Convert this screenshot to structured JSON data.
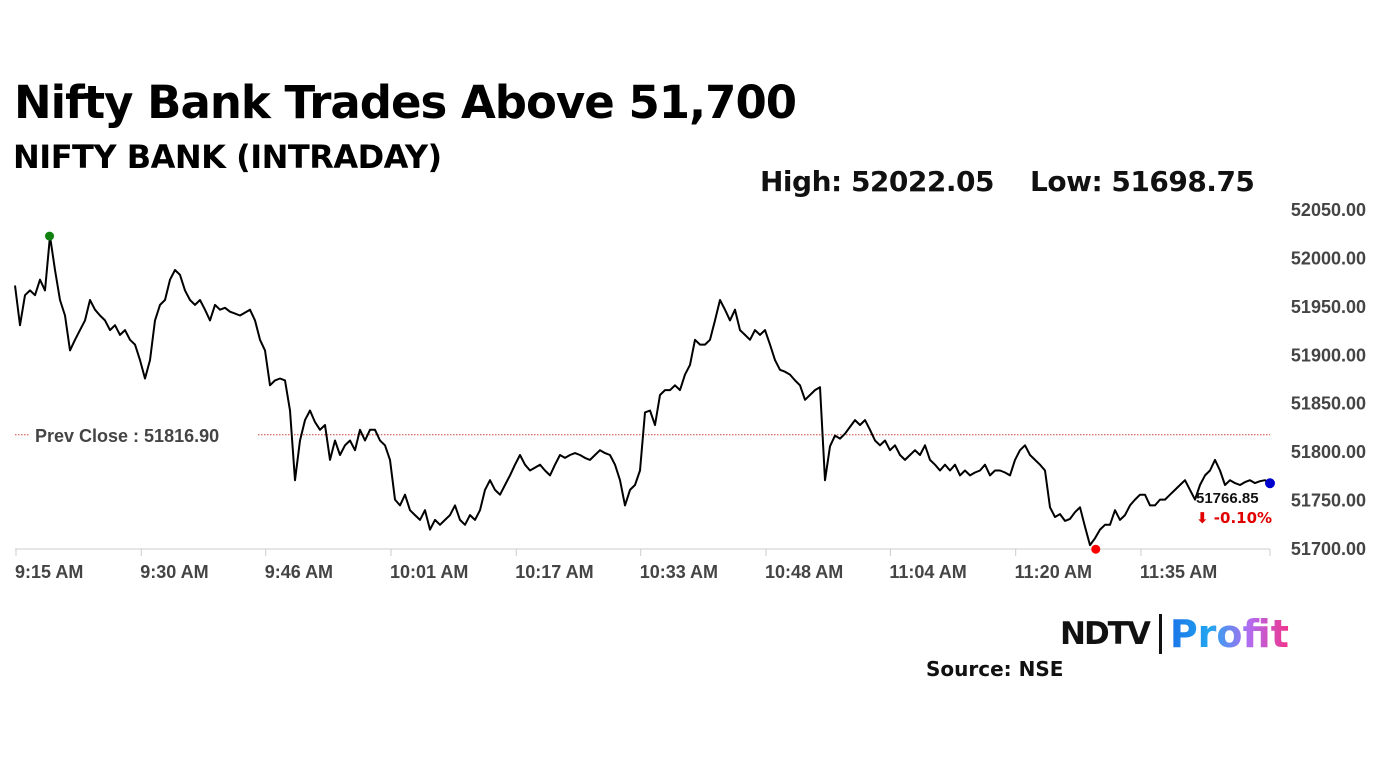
{
  "header": {
    "title": "Nifty Bank Trades Above 51,700",
    "subtitle": "NIFTY BANK (INTRADAY)",
    "high_label": "High: 52022.05",
    "low_label": "Low: 51698.75"
  },
  "footer": {
    "logo_ndtv": "NDTV",
    "logo_profit": "Profit",
    "source": "Source: NSE"
  },
  "colors": {
    "line": "#000000",
    "high_marker": "#108010",
    "low_marker": "#ff0000",
    "last_marker": "#0000cc",
    "prev_close_line": "#d04040",
    "negative": "#e00000",
    "axis_text": "#444444"
  },
  "chart_data": {
    "type": "line",
    "title": "NIFTY BANK (INTRADAY)",
    "xlabel": "",
    "ylabel": "",
    "x_range_minutes_since_open": [
      0,
      156.3
    ],
    "session_start": "9:15 AM",
    "ylim": [
      51700,
      52050
    ],
    "yticks": [
      "51700.00",
      "51750.00",
      "51800.00",
      "51850.00",
      "51900.00",
      "51950.00",
      "52000.00",
      "52050.00"
    ],
    "ytick_values": [
      51700,
      51750,
      51800,
      51850,
      51900,
      51950,
      52000,
      52050
    ],
    "xticks": [
      "9:15 AM",
      "9:30 AM",
      "9:46 AM",
      "10:01 AM",
      "10:17 AM",
      "10:33 AM",
      "10:48 AM",
      "11:04 AM",
      "11:20 AM",
      "11:35 AM"
    ],
    "xtick_minutes": [
      0,
      15.6,
      31.1,
      46.7,
      62.3,
      77.8,
      93.4,
      108.9,
      124.5,
      140.1
    ],
    "prev_close": 51816.9,
    "prev_close_label": "Prev Close : 51816.90",
    "high": 52022.05,
    "high_minute": 4.3,
    "low": 51698.75,
    "low_minute": 134.6,
    "last_value_label": "51766.85",
    "last_change_label": "⬇ -0.10%",
    "last_value": 51766.85,
    "grid": false,
    "values": [
      51971,
      51930,
      51961,
      51966,
      51961,
      51977,
      51966,
      52022,
      51987,
      51956,
      51940,
      51904,
      51915,
      51925,
      51935,
      51956,
      51946,
      51940,
      51935,
      51925,
      51930,
      51920,
      51925,
      51915,
      51910,
      51894,
      51875,
      51894,
      51935,
      51951,
      51956,
      51977,
      51987,
      51982,
      51966,
      51956,
      51951,
      51956,
      51946,
      51935,
      51951,
      51946,
      51948,
      51944,
      51942,
      51940,
      51943,
      51946,
      51935,
      51915,
      51904,
      51868,
      51873,
      51875,
      51873,
      51842,
      51770,
      51811,
      51832,
      51842,
      51830,
      51822,
      51827,
      51791,
      51811,
      51796,
      51806,
      51811,
      51801,
      51822,
      51811,
      51822,
      51822,
      51811,
      51806,
      51791,
      51750,
      51744,
      51755,
      51739,
      51734,
      51729,
      51739,
      51719,
      51729,
      51724,
      51729,
      51734,
      51744,
      51729,
      51724,
      51734,
      51729,
      51739,
      51760,
      51770,
      51760,
      51755,
      51765,
      51775,
      51786,
      51796,
      51786,
      51780,
      51783,
      51786,
      51780,
      51775,
      51786,
      51796,
      51793,
      51796,
      51798,
      51796,
      51793,
      51791,
      51796,
      51801,
      51798,
      51796,
      51786,
      51770,
      51744,
      51760,
      51765,
      51780,
      51840,
      51842,
      51827,
      51858,
      51863,
      51863,
      51868,
      51863,
      51879,
      51889,
      51915,
      51910,
      51910,
      51915,
      51935,
      51956,
      51946,
      51935,
      51946,
      51925,
      51920,
      51915,
      51925,
      51920,
      51925,
      51910,
      51894,
      51884,
      51882,
      51879,
      51873,
      51868,
      51853,
      51858,
      51863,
      51866,
      51770,
      51805,
      51816,
      51813,
      51818,
      51825,
      51832,
      51827,
      51832,
      51822,
      51811,
      51806,
      51811,
      51801,
      51806,
      51796,
      51791,
      51796,
      51801,
      51796,
      51806,
      51791,
      51786,
      51780,
      51786,
      51780,
      51786,
      51775,
      51780,
      51775,
      51778,
      51780,
      51786,
      51775,
      51780,
      51780,
      51778,
      51775,
      51791,
      51801,
      51806,
      51796,
      51791,
      51786,
      51780,
      51742,
      51732,
      51735,
      51728,
      51730,
      51737,
      51742,
      51722,
      51703,
      51710,
      51719,
      51724,
      51724,
      51739,
      51729,
      51734,
      51744,
      51750,
      51755,
      51755,
      51744,
      51744,
      51750,
      51750,
      51755,
      51760,
      51765,
      51770,
      51760,
      51750,
      51765,
      51775,
      51780,
      51791,
      51780,
      51765,
      51770,
      51767,
      51765,
      51768,
      51770,
      51767,
      51769,
      51770,
      51767
    ]
  }
}
